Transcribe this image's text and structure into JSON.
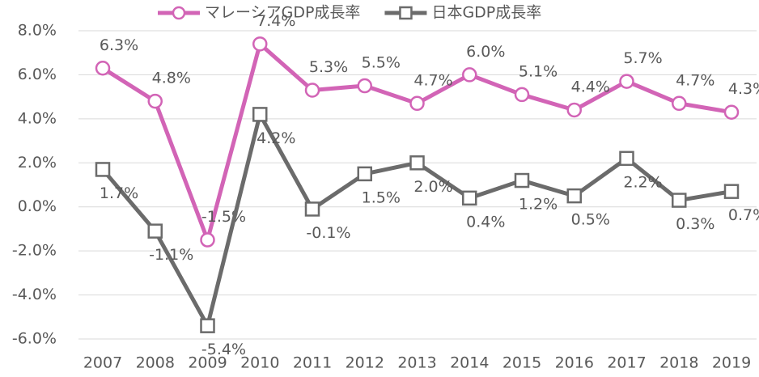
{
  "chart_data": {
    "type": "line",
    "categories": [
      "2007",
      "2008",
      "2009",
      "2010",
      "2011",
      "2012",
      "2013",
      "2014",
      "2015",
      "2016",
      "2017",
      "2018",
      "2019"
    ],
    "series": [
      {
        "name": "マレーシアGDP成長率",
        "color": "#d264b6",
        "marker": "circle",
        "values": [
          6.3,
          4.8,
          -1.5,
          7.4,
          5.3,
          5.5,
          4.7,
          6.0,
          5.1,
          4.4,
          5.7,
          4.7,
          4.3
        ],
        "value_labels": [
          "6.3%",
          "4.8%",
          "-1.5%",
          "7.4%",
          "5.3%",
          "5.5%",
          "4.7%",
          "6.0%",
          "5.1%",
          "4.4%",
          "5.7%",
          "4.7%",
          "4.3%"
        ]
      },
      {
        "name": "日本GDP成長率",
        "color": "#6b6b6b",
        "marker": "square",
        "values": [
          1.7,
          -1.1,
          -5.4,
          4.2,
          -0.1,
          1.5,
          2.0,
          0.4,
          1.2,
          0.5,
          2.2,
          0.3,
          0.7
        ],
        "value_labels": [
          "1.7%",
          "-1.1%",
          "-5.4%",
          "4.2%",
          "-0.1%",
          "1.5%",
          "2.0%",
          "0.4%",
          "1.2%",
          "0.5%",
          "2.2%",
          "0.3%",
          "0.7%"
        ]
      }
    ],
    "ylim": [
      -6.0,
      8.0
    ],
    "yticks": [
      {
        "value": -6,
        "label": "-6.0%"
      },
      {
        "value": -4,
        "label": "-4.0%"
      },
      {
        "value": -2,
        "label": "-2.0%"
      },
      {
        "value": 0,
        "label": "0.0%"
      },
      {
        "value": 2,
        "label": "2.0%"
      },
      {
        "value": 4,
        "label": "4.0%"
      },
      {
        "value": 6,
        "label": "6.0%"
      },
      {
        "value": 8,
        "label": "8.0%"
      }
    ],
    "grid": true,
    "legend": "top"
  }
}
